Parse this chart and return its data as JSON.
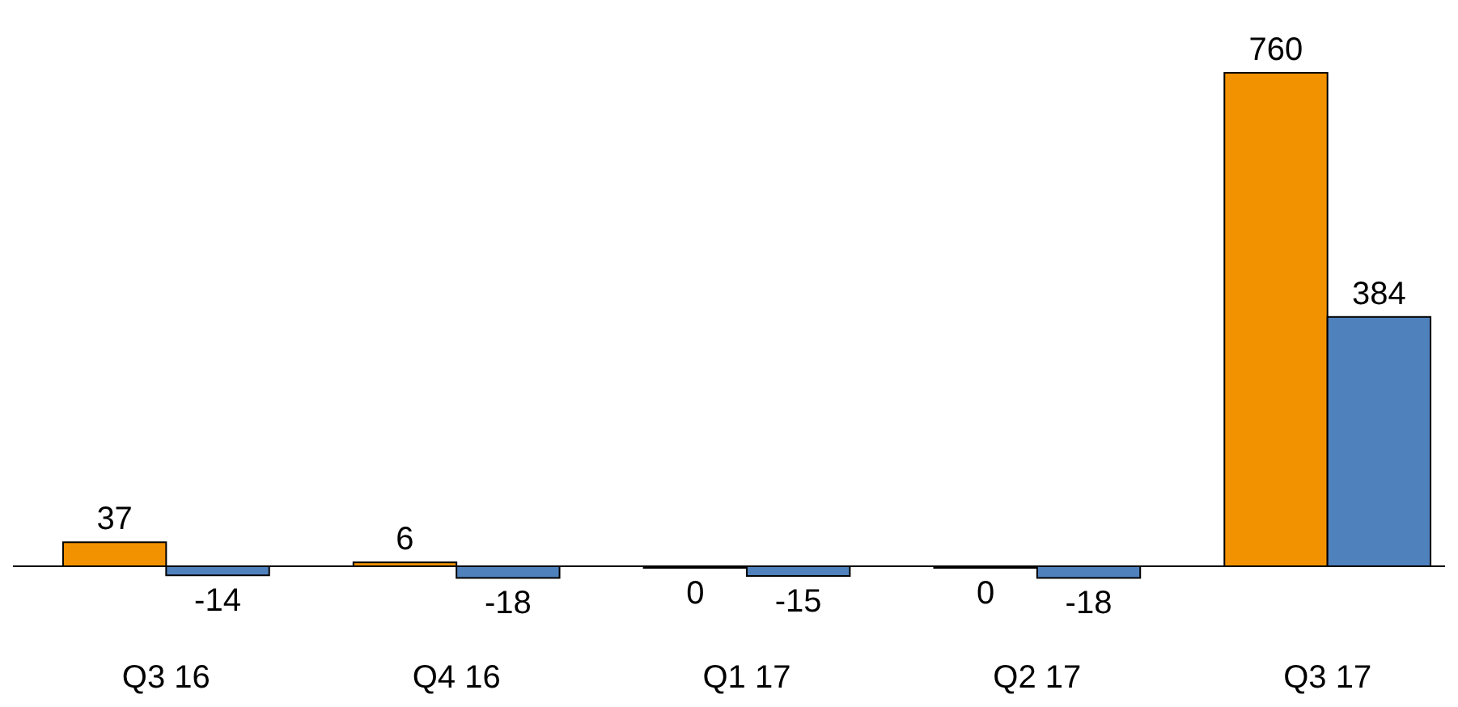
{
  "chart_data": {
    "type": "bar",
    "categories": [
      "Q3 16",
      "Q4 16",
      "Q1 17",
      "Q2 17",
      "Q3 17"
    ],
    "series": [
      {
        "color": "#f39200",
        "values": [
          37,
          6,
          0,
          0,
          760
        ]
      },
      {
        "color": "#4f81bd",
        "values": [
          -14,
          -18,
          -15,
          -18,
          384
        ]
      }
    ],
    "data_labels": true
  }
}
